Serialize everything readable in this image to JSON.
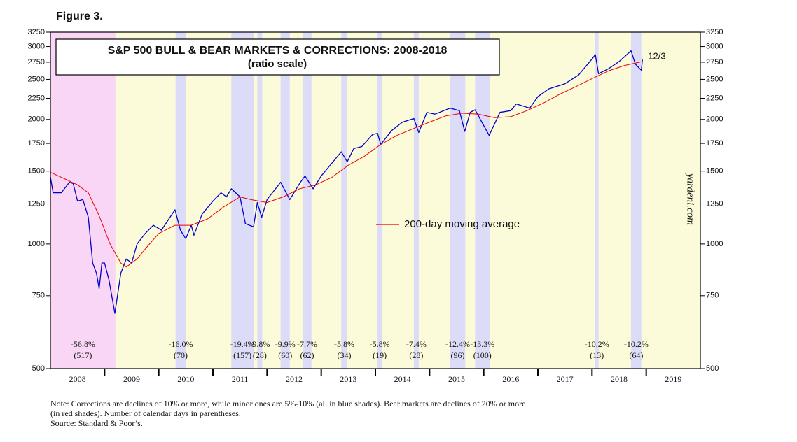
{
  "chart_data": {
    "type": "line",
    "figure_label": "Figure 3.",
    "title": "S&P 500 BULL & BEAR MARKETS & CORRECTIONS: 2008-2018",
    "subtitle": "(ratio scale)",
    "source_mark": "yardeni.com",
    "end_label": "12/3",
    "notes": [
      "Note: Corrections are declines of 10% or more, while minor ones are 5%-10% (all in blue shades).  Bear markets are declines of 20% or more",
      "(in red shades). Number of calendar days in parentheses.",
      "Source: Standard & Poor’s."
    ],
    "yscale": "log",
    "ylim": [
      500,
      3250
    ],
    "yticks": [
      500,
      750,
      1000,
      1250,
      1500,
      1750,
      2000,
      2250,
      2500,
      2750,
      3000,
      3250
    ],
    "xlim": [
      2008,
      2020
    ],
    "xticks": [
      2009,
      2010,
      2011,
      2012,
      2013,
      2014,
      2015,
      2016,
      2017,
      2018,
      2019
    ],
    "year_labels": [
      {
        "value": 2008.5,
        "label": "2008"
      },
      {
        "value": 2009.5,
        "label": "2009"
      },
      {
        "value": 2010.5,
        "label": "2010"
      },
      {
        "value": 2011.5,
        "label": "2011"
      },
      {
        "value": 2012.5,
        "label": "2012"
      },
      {
        "value": 2013.5,
        "label": "2013"
      },
      {
        "value": 2014.5,
        "label": "2014"
      },
      {
        "value": 2015.5,
        "label": "2015"
      },
      {
        "value": 2016.5,
        "label": "2016"
      },
      {
        "value": 2017.5,
        "label": "2017"
      },
      {
        "value": 2018.5,
        "label": "2018"
      },
      {
        "value": 2019.5,
        "label": "2019"
      }
    ],
    "background_color": "#fbfbd9",
    "shades": [
      {
        "start": 2008.0,
        "end": 2009.2,
        "kind": "bear",
        "color": "#f9d6f5",
        "decline": "-56.8%",
        "days": "(517)"
      },
      {
        "start": 2010.31,
        "end": 2010.5,
        "kind": "correction",
        "color": "#dcdcf8",
        "decline": "-16.0%",
        "days": "(70)"
      },
      {
        "start": 2011.34,
        "end": 2011.75,
        "kind": "correction",
        "color": "#dcdcf8",
        "decline": "-19.4%",
        "days": "(157)"
      },
      {
        "start": 2011.82,
        "end": 2011.91,
        "kind": "correction",
        "color": "#dcdcf8",
        "decline": "-9.8%",
        "days": "(28)"
      },
      {
        "start": 2012.25,
        "end": 2012.42,
        "kind": "correction",
        "color": "#dcdcf8",
        "decline": "-9.9%",
        "days": "(60)"
      },
      {
        "start": 2012.66,
        "end": 2012.82,
        "kind": "correction",
        "color": "#dcdcf8",
        "decline": "-7.7%",
        "days": "(62)"
      },
      {
        "start": 2013.37,
        "end": 2013.48,
        "kind": "correction",
        "color": "#dcdcf8",
        "decline": "-5.8%",
        "days": "(34)"
      },
      {
        "start": 2014.04,
        "end": 2014.12,
        "kind": "correction",
        "color": "#dcdcf8",
        "decline": "-5.8%",
        "days": "(19)"
      },
      {
        "start": 2014.71,
        "end": 2014.8,
        "kind": "correction",
        "color": "#dcdcf8",
        "decline": "-7.4%",
        "days": "(28)"
      },
      {
        "start": 2015.38,
        "end": 2015.66,
        "kind": "correction",
        "color": "#dcdcf8",
        "decline": "-12.4%",
        "days": "(96)"
      },
      {
        "start": 2015.84,
        "end": 2016.11,
        "kind": "correction",
        "color": "#dcdcf8",
        "decline": "-13.3%",
        "days": "(100)"
      },
      {
        "start": 2018.06,
        "end": 2018.12,
        "kind": "correction",
        "color": "#dcdcf8",
        "decline": "-10.2%",
        "days": "(13)"
      },
      {
        "start": 2018.72,
        "end": 2018.91,
        "kind": "correction",
        "color": "#dcdcf8",
        "decline": "-10.2%",
        "days": "(64)"
      }
    ],
    "series": [
      {
        "color": "#0000cc",
        "x": [
          2008.0,
          2008.05,
          2008.2,
          2008.35,
          2008.42,
          2008.5,
          2008.6,
          2008.7,
          2008.78,
          2008.85,
          2008.9,
          2008.95,
          2009.0,
          2009.08,
          2009.19,
          2009.3,
          2009.4,
          2009.5,
          2009.6,
          2009.75,
          2009.9,
          2010.05,
          2010.3,
          2010.4,
          2010.5,
          2010.6,
          2010.65,
          2010.8,
          2011.0,
          2011.15,
          2011.25,
          2011.34,
          2011.5,
          2011.6,
          2011.75,
          2011.82,
          2011.9,
          2012.0,
          2012.25,
          2012.42,
          2012.6,
          2012.7,
          2012.85,
          2013.0,
          2013.2,
          2013.37,
          2013.48,
          2013.6,
          2013.75,
          2013.95,
          2014.04,
          2014.1,
          2014.3,
          2014.5,
          2014.71,
          2014.8,
          2014.95,
          2015.1,
          2015.38,
          2015.55,
          2015.65,
          2015.75,
          2015.84,
          2016.1,
          2016.3,
          2016.5,
          2016.6,
          2016.85,
          2017.0,
          2017.2,
          2017.5,
          2017.75,
          2018.0,
          2018.06,
          2018.12,
          2018.3,
          2018.5,
          2018.72,
          2018.8,
          2018.91,
          2018.93
        ],
        "values": [
          1450,
          1330,
          1330,
          1410,
          1400,
          1270,
          1280,
          1160,
          900,
          850,
          780,
          900,
          900,
          820,
          680,
          850,
          920,
          900,
          1000,
          1060,
          1110,
          1080,
          1210,
          1080,
          1030,
          1110,
          1050,
          1180,
          1270,
          1330,
          1300,
          1360,
          1300,
          1120,
          1100,
          1260,
          1160,
          1280,
          1410,
          1280,
          1400,
          1460,
          1360,
          1460,
          1570,
          1670,
          1580,
          1700,
          1720,
          1840,
          1850,
          1740,
          1880,
          1970,
          2010,
          1860,
          2080,
          2060,
          2130,
          2100,
          1870,
          2080,
          2110,
          1830,
          2080,
          2100,
          2180,
          2130,
          2270,
          2370,
          2440,
          2560,
          2800,
          2870,
          2580,
          2650,
          2760,
          2930,
          2720,
          2630,
          2790
        ]
      },
      {
        "name": "200-day moving average",
        "color": "#ee0000",
        "x": [
          2008.0,
          2008.3,
          2008.5,
          2008.7,
          2008.9,
          2009.1,
          2009.3,
          2009.4,
          2009.6,
          2009.8,
          2010.0,
          2010.3,
          2010.6,
          2010.9,
          2011.2,
          2011.5,
          2011.7,
          2012.0,
          2012.3,
          2012.6,
          2012.9,
          2013.2,
          2013.5,
          2013.8,
          2014.1,
          2014.4,
          2014.7,
          2015.0,
          2015.3,
          2015.6,
          2015.9,
          2016.2,
          2016.5,
          2016.8,
          2017.1,
          2017.4,
          2017.7,
          2018.0,
          2018.3,
          2018.6,
          2018.93
        ],
        "values": [
          1490,
          1430,
          1390,
          1330,
          1170,
          1000,
          900,
          880,
          920,
          990,
          1060,
          1110,
          1110,
          1150,
          1230,
          1300,
          1280,
          1260,
          1300,
          1360,
          1390,
          1450,
          1550,
          1630,
          1740,
          1830,
          1900,
          1970,
          2040,
          2070,
          2060,
          2020,
          2030,
          2100,
          2190,
          2300,
          2400,
          2510,
          2620,
          2700,
          2760
        ]
      }
    ]
  }
}
